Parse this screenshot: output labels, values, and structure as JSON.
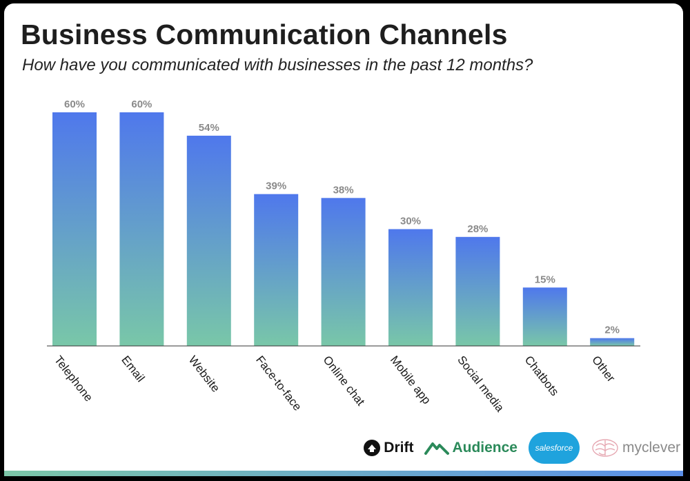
{
  "chart_data": {
    "type": "bar",
    "title": "Business Communication Channels",
    "subtitle": "How have you communicated with businesses in the past 12 months?",
    "categories": [
      "Telephone",
      "Email",
      "Website",
      "Face-to-face",
      "Online chat",
      "Mobile app",
      "Social media",
      "Chatbots",
      "Other"
    ],
    "values": [
      60,
      60,
      54,
      39,
      38,
      30,
      28,
      15,
      2
    ],
    "value_labels": [
      "60%",
      "60%",
      "54%",
      "39%",
      "38%",
      "30%",
      "28%",
      "15%",
      "2%"
    ],
    "ylim": [
      0,
      60
    ],
    "grid": false,
    "legend": "none",
    "colors": {
      "bar_top": "#4f78ec",
      "bar_bottom": "#79c7a8",
      "value_label": "#8a8a8a"
    }
  },
  "logos": {
    "drift": "Drift",
    "audience": "Audience",
    "salesforce": "salesforce",
    "myclever": "myclever"
  }
}
